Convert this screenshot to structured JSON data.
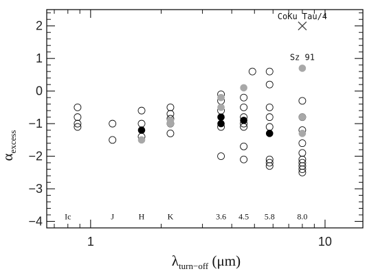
{
  "chart_data": {
    "type": "scatter",
    "xscale": "log",
    "xlim": [
      0.65,
      14.5
    ],
    "ylim": [
      -4.2,
      2.5
    ],
    "xticks": [
      {
        "value": 1,
        "label": "1"
      },
      {
        "value": 10,
        "label": "10"
      }
    ],
    "yticks": [
      {
        "value": 2,
        "label": "2"
      },
      {
        "value": 1,
        "label": "1"
      },
      {
        "value": 0,
        "label": "0"
      },
      {
        "value": -1,
        "label": "−1"
      },
      {
        "value": -2,
        "label": "−2"
      },
      {
        "value": -3,
        "label": "−3"
      },
      {
        "value": -4,
        "label": "−4"
      }
    ],
    "xlabel": {
      "main": "λ",
      "sub": "turn−off",
      "unit": " (μm)"
    },
    "ylabel": {
      "main": "α",
      "sub": "excess"
    },
    "band_labels": [
      {
        "text": "Ic",
        "x": 0.8
      },
      {
        "text": "J",
        "x": 1.24
      },
      {
        "text": "H",
        "x": 1.65
      },
      {
        "text": "K",
        "x": 2.19
      },
      {
        "text": "3.6",
        "x": 3.6
      },
      {
        "text": "4.5",
        "x": 4.5
      },
      {
        "text": "5.8",
        "x": 5.8
      },
      {
        "text": "8.0",
        "x": 8.0
      }
    ],
    "band_label_y": -3.85,
    "series": [
      {
        "style": "open",
        "points": [
          [
            0.88,
            -0.5
          ],
          [
            0.88,
            -0.8
          ],
          [
            0.88,
            -1.0
          ],
          [
            0.88,
            -1.1
          ],
          [
            1.24,
            -1.0
          ],
          [
            1.24,
            -1.5
          ],
          [
            1.65,
            -0.6
          ],
          [
            1.65,
            -1.0
          ],
          [
            1.65,
            -1.4
          ],
          [
            2.19,
            -0.5
          ],
          [
            2.19,
            -0.7
          ],
          [
            2.19,
            -0.85
          ],
          [
            2.19,
            -1.0
          ],
          [
            2.19,
            -1.3
          ],
          [
            3.6,
            -0.1
          ],
          [
            3.6,
            -0.3
          ],
          [
            3.6,
            -0.6
          ],
          [
            3.6,
            -1.1
          ],
          [
            3.6,
            -2.0
          ],
          [
            4.5,
            -0.2
          ],
          [
            4.5,
            -0.5
          ],
          [
            4.5,
            -0.8
          ],
          [
            4.5,
            -1.0
          ],
          [
            4.5,
            -1.1
          ],
          [
            4.5,
            -1.7
          ],
          [
            4.5,
            -2.1
          ],
          [
            4.9,
            0.6
          ],
          [
            5.8,
            0.6
          ],
          [
            5.8,
            0.2
          ],
          [
            5.8,
            -0.5
          ],
          [
            5.8,
            -0.8
          ],
          [
            5.8,
            -1.1
          ],
          [
            5.8,
            -2.1
          ],
          [
            5.8,
            -2.2
          ],
          [
            5.8,
            -2.3
          ],
          [
            8.0,
            -0.3
          ],
          [
            8.0,
            -0.8
          ],
          [
            8.0,
            -1.2
          ],
          [
            8.0,
            -1.6
          ],
          [
            8.0,
            -1.9
          ],
          [
            8.0,
            -2.1
          ],
          [
            8.0,
            -2.2
          ],
          [
            8.0,
            -2.3
          ],
          [
            8.0,
            -2.4
          ],
          [
            8.0,
            -2.5
          ]
        ]
      },
      {
        "style": "gray",
        "points": [
          [
            1.65,
            -1.5
          ],
          [
            2.19,
            -0.9
          ],
          [
            2.19,
            -1.0
          ],
          [
            3.6,
            -0.2
          ],
          [
            3.6,
            -0.5
          ],
          [
            4.5,
            0.1
          ],
          [
            8.0,
            0.7
          ],
          [
            8.0,
            -0.8
          ],
          [
            8.0,
            -1.3
          ]
        ]
      },
      {
        "style": "filled",
        "points": [
          [
            1.65,
            -1.2
          ],
          [
            3.6,
            -0.8
          ],
          [
            3.6,
            -1.0
          ],
          [
            4.5,
            -0.9
          ],
          [
            5.8,
            -1.3
          ]
        ]
      },
      {
        "style": "cross",
        "points": [
          [
            8.0,
            2.0
          ]
        ]
      }
    ],
    "annotations": [
      {
        "text": "CoKu Tau/4",
        "x": 8.0,
        "y": 2.2
      },
      {
        "text": "Sz 91",
        "x": 8.0,
        "y": 0.95
      }
    ]
  }
}
